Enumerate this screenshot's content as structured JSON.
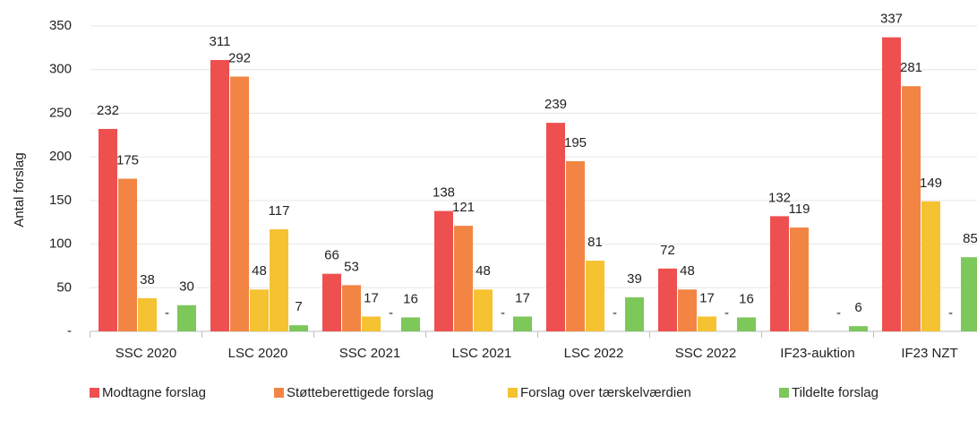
{
  "chart_data": {
    "type": "bar",
    "y_label": "Antal forslag",
    "categories": [
      "SSC 2020",
      "LSC 2020",
      "SSC 2021",
      "LSC 2021",
      "LSC 2022",
      "SSC 2022",
      "IF23-auktion",
      "IF23 NZT"
    ],
    "series": [
      {
        "name": "Modtagne forslag",
        "color": "#ee5050",
        "values": [
          232,
          311,
          66,
          138,
          239,
          72,
          132,
          337
        ]
      },
      {
        "name": "Støtteberettigede forslag",
        "color": "#f28544",
        "values": [
          175,
          292,
          53,
          121,
          195,
          48,
          119,
          281
        ]
      },
      {
        "name": "Forslag over tærskelværdien",
        "color": "#f5c232",
        "values": [
          38,
          48,
          17,
          48,
          81,
          17,
          null,
          149
        ]
      },
      {
        "color": "#f5c232",
        "values": [
          0,
          117,
          0,
          0,
          0,
          0,
          0,
          0
        ],
        "value_labels": [
          "-",
          "117",
          "-",
          "-",
          "-",
          "-",
          "-",
          "-"
        ]
      },
      {
        "name": "Tildelte forslag",
        "color": "#7cc85a",
        "values": [
          30,
          7,
          16,
          17,
          39,
          16,
          6,
          85
        ]
      }
    ],
    "ylim": [
      0,
      350
    ],
    "yticks": [
      {
        "value": 0,
        "label": "-"
      },
      50,
      100,
      150,
      200,
      250,
      300,
      350
    ],
    "grid": true
  }
}
